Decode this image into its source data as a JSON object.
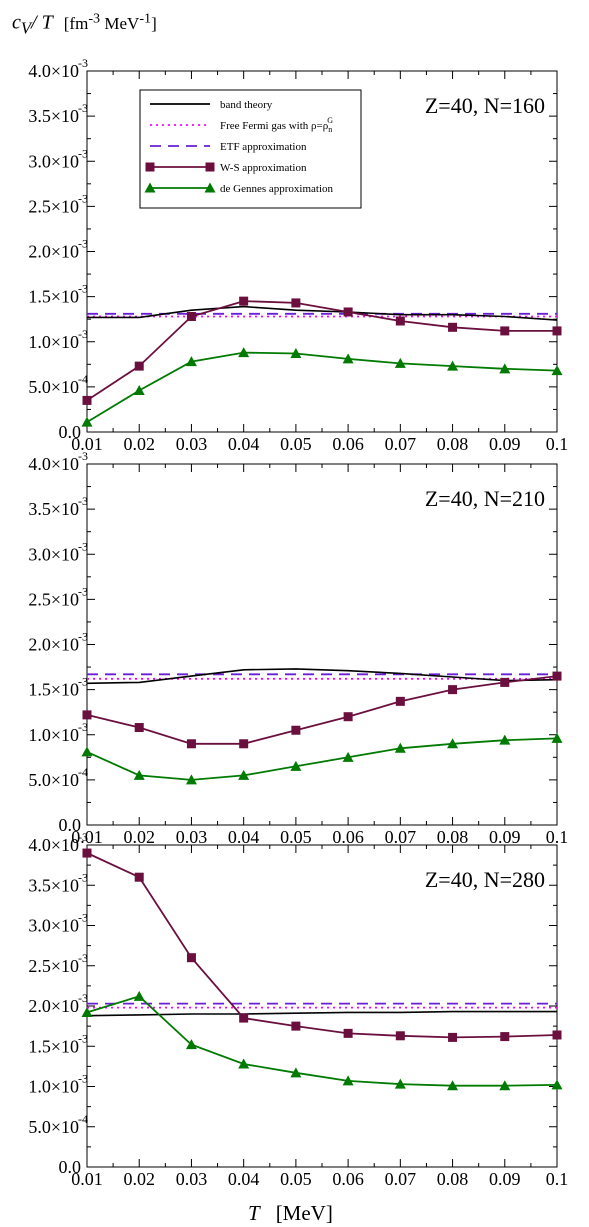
{
  "ylabel": {
    "symbol": "c",
    "sub": "V",
    "rest": "/ T",
    "unit_base": "[fm",
    "unit_exp1": "-3",
    "unit_mid": " MeV",
    "unit_exp2": "-1",
    "unit_close": "]"
  },
  "xlabel": {
    "symbol": "T",
    "unit": "[MeV]"
  },
  "colors": {
    "band_theory": "#000000",
    "free_fermi": "#ff00ff",
    "etf": "#6a1ed6",
    "ws": "#6b0f3f",
    "de_gennes": "#007a00"
  },
  "legend": [
    {
      "key": "band_theory",
      "label": "band theory",
      "style": "solid",
      "marker": "none"
    },
    {
      "key": "free_fermi",
      "label": "Free Fermi gas with ρ=ρ",
      "sup": "G",
      "sub": "n",
      "style": "dotted",
      "marker": "none"
    },
    {
      "key": "etf",
      "label": "ETF approximation",
      "style": "dashed",
      "marker": "none"
    },
    {
      "key": "ws",
      "label": "W-S approximation",
      "style": "solid",
      "marker": "square"
    },
    {
      "key": "de_gennes",
      "label": "de Gennes approximation",
      "style": "solid",
      "marker": "triangle"
    }
  ],
  "chart_data": [
    {
      "type": "line",
      "panel_label": "Z=40, N=160",
      "x": [
        0.01,
        0.02,
        0.03,
        0.04,
        0.05,
        0.06,
        0.07,
        0.08,
        0.09,
        0.1
      ],
      "xlim": [
        0.01,
        0.1
      ],
      "ylim": [
        0,
        0.004
      ],
      "y_ticks": [
        {
          "mant": "0.0",
          "exp": ""
        },
        {
          "mant": "5.0×10",
          "exp": "-4"
        },
        {
          "mant": "1.0×10",
          "exp": "-3"
        },
        {
          "mant": "1.5×10",
          "exp": "-3"
        },
        {
          "mant": "2.0×10",
          "exp": "-3"
        },
        {
          "mant": "2.5×10",
          "exp": "-3"
        },
        {
          "mant": "3.0×10",
          "exp": "-3"
        },
        {
          "mant": "3.5×10",
          "exp": "-3"
        },
        {
          "mant": "4.0×10",
          "exp": "-3"
        }
      ],
      "x_ticks": [
        "0.01",
        "0.02",
        "0.03",
        "0.04",
        "0.05",
        "0.06",
        "0.07",
        "0.08",
        "0.09",
        "0.1"
      ],
      "show_legend": true,
      "series": [
        {
          "key": "band_theory",
          "name": "band theory",
          "values": [
            0.00127,
            0.00127,
            0.00135,
            0.00139,
            0.00135,
            0.00133,
            0.0013,
            0.0013,
            0.00128,
            0.00124
          ]
        },
        {
          "key": "free_fermi",
          "name": "Free Fermi gas",
          "values": [
            0.00128,
            0.00128,
            0.00128,
            0.00128,
            0.00128,
            0.00128,
            0.00128,
            0.00128,
            0.00128,
            0.00128
          ]
        },
        {
          "key": "etf",
          "name": "ETF approximation",
          "values": [
            0.00131,
            0.00131,
            0.00131,
            0.00131,
            0.00131,
            0.00131,
            0.00131,
            0.00131,
            0.00131,
            0.00131
          ]
        },
        {
          "key": "ws",
          "name": "W-S approximation",
          "values": [
            0.00035,
            0.00073,
            0.00128,
            0.00145,
            0.00143,
            0.00133,
            0.00123,
            0.00116,
            0.00112,
            0.00112
          ]
        },
        {
          "key": "de_gennes",
          "name": "de Gennes approximation",
          "values": [
            0.00011,
            0.00046,
            0.00078,
            0.00088,
            0.00087,
            0.00081,
            0.00076,
            0.00073,
            0.0007,
            0.00068
          ]
        }
      ]
    },
    {
      "type": "line",
      "panel_label": "Z=40, N=210",
      "x": [
        0.01,
        0.02,
        0.03,
        0.04,
        0.05,
        0.06,
        0.07,
        0.08,
        0.09,
        0.1
      ],
      "xlim": [
        0.01,
        0.1
      ],
      "ylim": [
        0,
        0.004
      ],
      "y_ticks": [
        {
          "mant": "0.0",
          "exp": ""
        },
        {
          "mant": "5.0×10",
          "exp": "-4"
        },
        {
          "mant": "1.0×10",
          "exp": "-3"
        },
        {
          "mant": "1.5×10",
          "exp": "-3"
        },
        {
          "mant": "2.0×10",
          "exp": "-3"
        },
        {
          "mant": "2.5×10",
          "exp": "-3"
        },
        {
          "mant": "3.0×10",
          "exp": "-3"
        },
        {
          "mant": "3.5×10",
          "exp": "-3"
        },
        {
          "mant": "4.0×10",
          "exp": "-3"
        }
      ],
      "x_ticks": [
        "0.01",
        "0.02",
        "0.03",
        "0.04",
        "0.05",
        "0.06",
        "0.07",
        "0.08",
        "0.09",
        "0.1"
      ],
      "show_legend": false,
      "series": [
        {
          "key": "band_theory",
          "name": "band theory",
          "values": [
            0.00157,
            0.00158,
            0.00165,
            0.00172,
            0.00173,
            0.00171,
            0.00168,
            0.00164,
            0.0016,
            0.00161
          ]
        },
        {
          "key": "free_fermi",
          "name": "Free Fermi gas",
          "values": [
            0.00162,
            0.00162,
            0.00162,
            0.00162,
            0.00162,
            0.00162,
            0.00162,
            0.00162,
            0.00162,
            0.00162
          ]
        },
        {
          "key": "etf",
          "name": "ETF approximation",
          "values": [
            0.00167,
            0.00167,
            0.00167,
            0.00167,
            0.00167,
            0.00167,
            0.00167,
            0.00167,
            0.00167,
            0.00167
          ]
        },
        {
          "key": "ws",
          "name": "W-S approximation",
          "values": [
            0.00122,
            0.00108,
            0.0009,
            0.0009,
            0.00105,
            0.0012,
            0.00137,
            0.0015,
            0.00158,
            0.00165
          ]
        },
        {
          "key": "de_gennes",
          "name": "de Gennes approximation",
          "values": [
            0.00081,
            0.00055,
            0.0005,
            0.00055,
            0.00065,
            0.00075,
            0.00085,
            0.0009,
            0.00094,
            0.00096
          ]
        }
      ]
    },
    {
      "type": "line",
      "panel_label": "Z=40, N=280",
      "x": [
        0.01,
        0.02,
        0.03,
        0.04,
        0.05,
        0.06,
        0.07,
        0.08,
        0.09,
        0.1
      ],
      "xlim": [
        0.01,
        0.1
      ],
      "ylim": [
        0,
        0.004
      ],
      "y_ticks": [
        {
          "mant": "0.0",
          "exp": ""
        },
        {
          "mant": "5.0×10",
          "exp": "-4"
        },
        {
          "mant": "1.0×10",
          "exp": "-3"
        },
        {
          "mant": "1.5×10",
          "exp": "-3"
        },
        {
          "mant": "2.0×10",
          "exp": "-3"
        },
        {
          "mant": "2.5×10",
          "exp": "-3"
        },
        {
          "mant": "3.0×10",
          "exp": "-3"
        },
        {
          "mant": "3.5×10",
          "exp": "-3"
        },
        {
          "mant": "4.0×10",
          "exp": "-3"
        }
      ],
      "x_ticks": [
        "0.01",
        "0.02",
        "0.03",
        "0.04",
        "0.05",
        "0.06",
        "0.07",
        "0.08",
        "0.09",
        "0.1"
      ],
      "show_legend": false,
      "series": [
        {
          "key": "band_theory",
          "name": "band theory",
          "values": [
            0.00188,
            0.00189,
            0.0019,
            0.0019,
            0.00191,
            0.00192,
            0.00192,
            0.00193,
            0.00193,
            0.00193
          ]
        },
        {
          "key": "free_fermi",
          "name": "Free Fermi gas",
          "values": [
            0.00198,
            0.00198,
            0.00198,
            0.00198,
            0.00198,
            0.00198,
            0.00198,
            0.00198,
            0.00198,
            0.00198
          ]
        },
        {
          "key": "etf",
          "name": "ETF approximation",
          "values": [
            0.00203,
            0.00203,
            0.00203,
            0.00203,
            0.00203,
            0.00203,
            0.00203,
            0.00203,
            0.00203,
            0.00203
          ]
        },
        {
          "key": "ws",
          "name": "W-S approximation",
          "values": [
            0.0039,
            0.0036,
            0.0026,
            0.00185,
            0.00175,
            0.00166,
            0.00163,
            0.00161,
            0.00162,
            0.00164
          ]
        },
        {
          "key": "de_gennes",
          "name": "de Gennes approximation",
          "values": [
            0.00192,
            0.00212,
            0.00152,
            0.00128,
            0.00117,
            0.00107,
            0.00103,
            0.00101,
            0.00101,
            0.00102
          ]
        }
      ]
    }
  ]
}
